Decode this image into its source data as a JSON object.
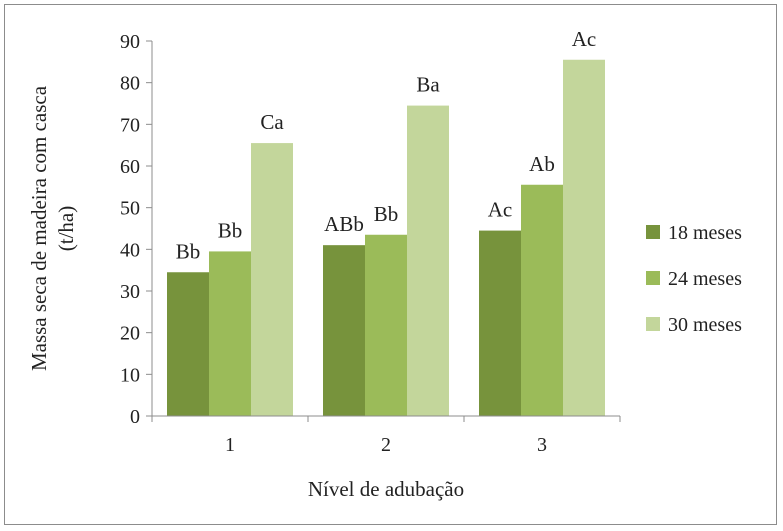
{
  "chart_data": {
    "type": "bar",
    "title": "",
    "xlabel": "Nível de adubação",
    "ylabel_line1": "Massa seca de madeira com casca",
    "ylabel_line2": "(t/ha)",
    "ylim": [
      0,
      90
    ],
    "yticks": [
      0,
      10,
      20,
      30,
      40,
      50,
      60,
      70,
      80,
      90
    ],
    "categories": [
      "1",
      "2",
      "3"
    ],
    "series": [
      {
        "name": "18 meses",
        "color": "#77933c",
        "values": [
          34.5,
          41,
          44.5
        ],
        "labels": [
          "Bb",
          "ABb",
          "Ac"
        ]
      },
      {
        "name": "24 meses",
        "color": "#9bbb59",
        "values": [
          39.5,
          43.5,
          55.5
        ],
        "labels": [
          "Bb",
          "Bb",
          "Ab"
        ]
      },
      {
        "name": "30 meses",
        "color": "#c3d69b",
        "values": [
          65.5,
          74.5,
          85.5
        ],
        "labels": [
          "Ca",
          "Ba",
          "Ac"
        ]
      }
    ],
    "grid": false,
    "legend_position": "right"
  }
}
